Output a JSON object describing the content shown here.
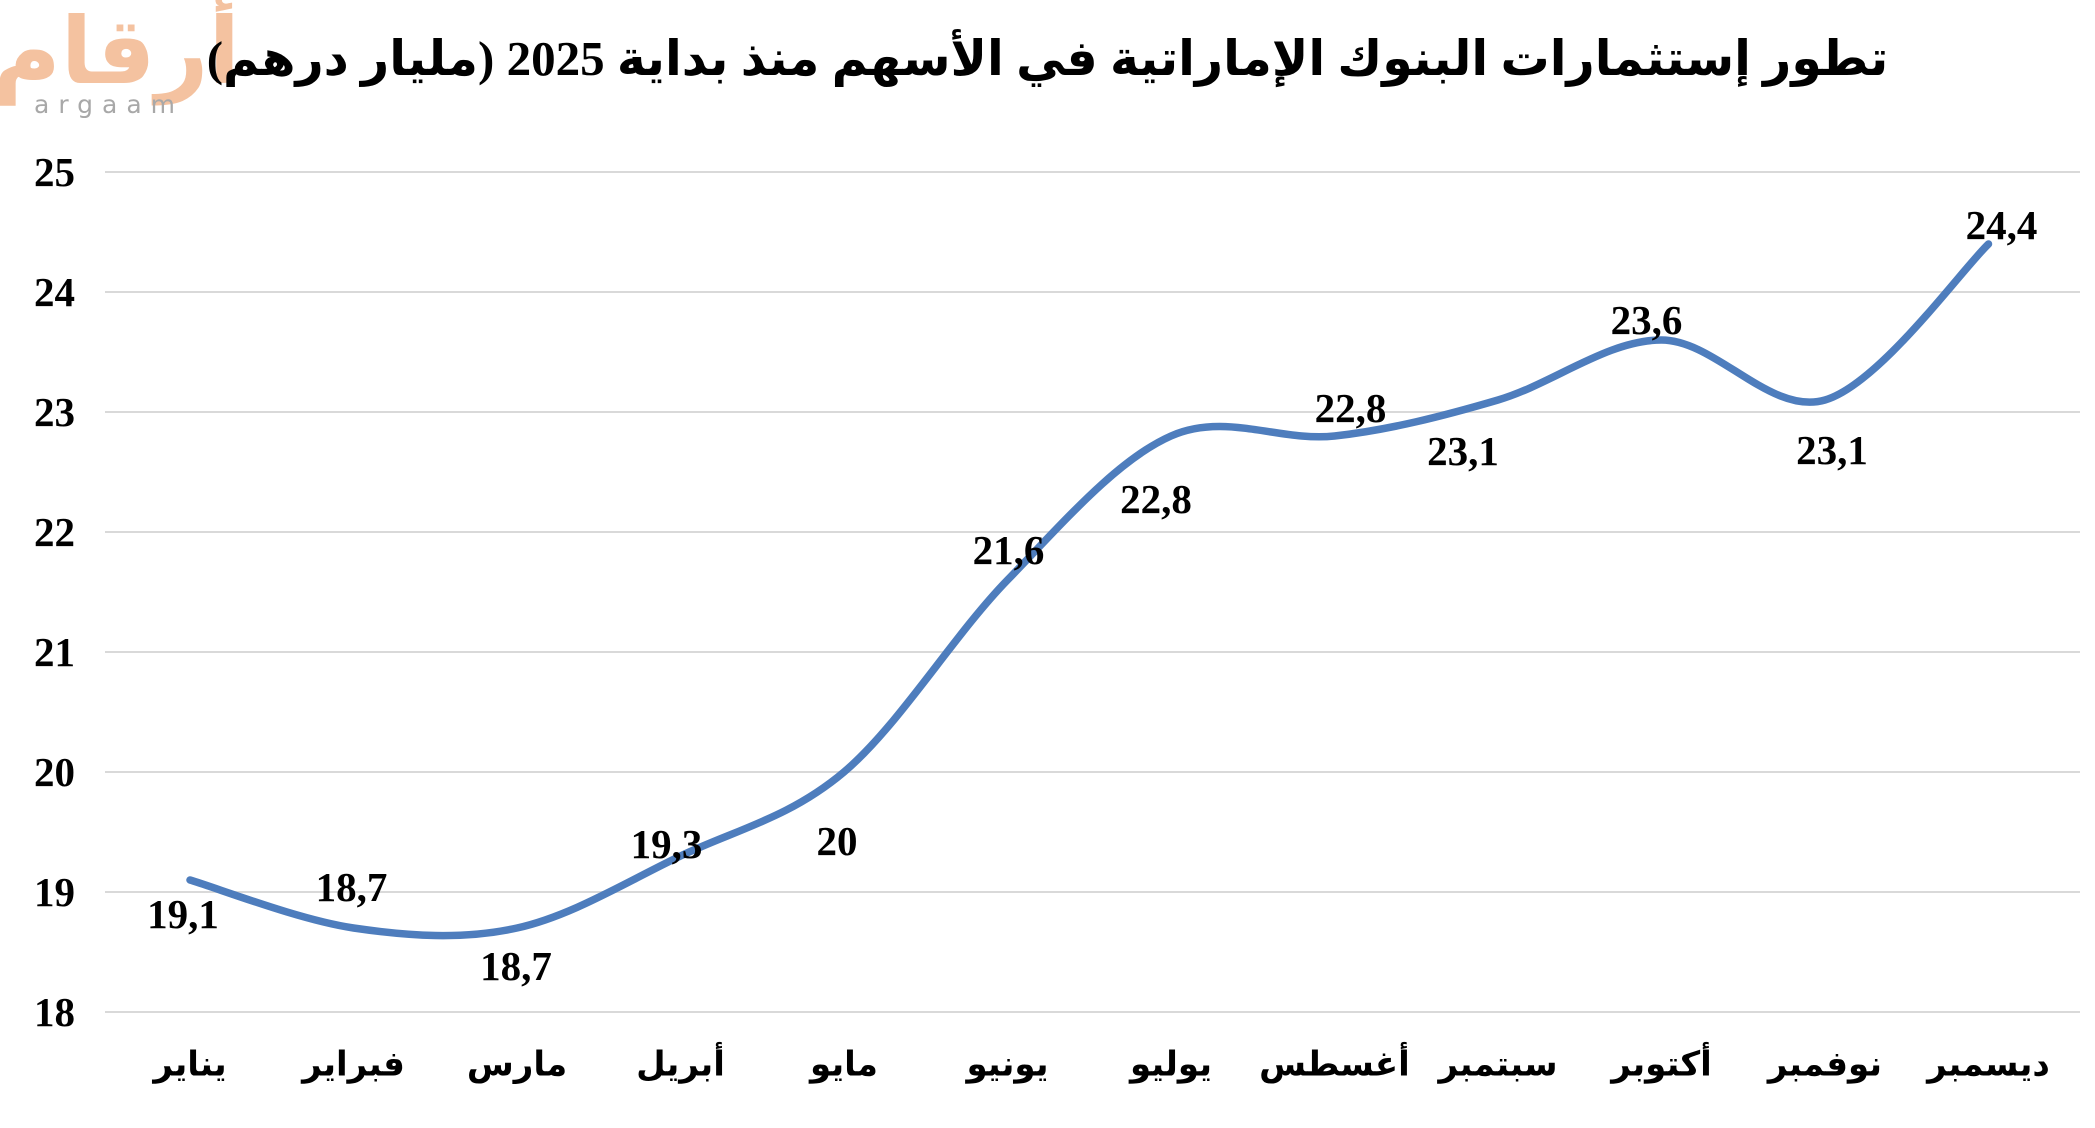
{
  "logo": {
    "arabic": "أرقام",
    "latin": "argaam",
    "arabic_color": "#f4c2a0",
    "latin_color": "#a8a8a8"
  },
  "title": "تطور إستثمارات البنوك الإماراتية في الأسهم منذ بداية 2025 (مليار درهم)",
  "chart_data": {
    "type": "line",
    "title": "تطور إستثمارات البنوك الإماراتية في الأسهم منذ بداية 2025 (مليار درهم)",
    "categories": [
      "يناير",
      "فبراير",
      "مارس",
      "أبريل",
      "مايو",
      "يونيو",
      "يوليو",
      "أغسطس",
      "سبتمبر",
      "أكتوبر",
      "نوفمبر",
      "ديسمبر"
    ],
    "values": [
      19.1,
      18.7,
      18.7,
      19.3,
      20,
      21.6,
      22.8,
      22.8,
      23.1,
      23.6,
      23.1,
      24.4
    ],
    "labels": [
      "19,1",
      "18,7",
      "18,7",
      "19,3",
      "20",
      "21,6",
      "22,8",
      "22,8",
      "23,1",
      "23,6",
      "23,1",
      "24,4"
    ],
    "xlabel": "",
    "ylabel": "",
    "ylim": [
      18,
      25
    ],
    "yticks": [
      25,
      24,
      23,
      22,
      21,
      20,
      19,
      18
    ],
    "grid": true,
    "legend": false,
    "line_color": "#4e7dbd",
    "gridline_color": "#d9d9d9",
    "label_color": "#000000"
  }
}
